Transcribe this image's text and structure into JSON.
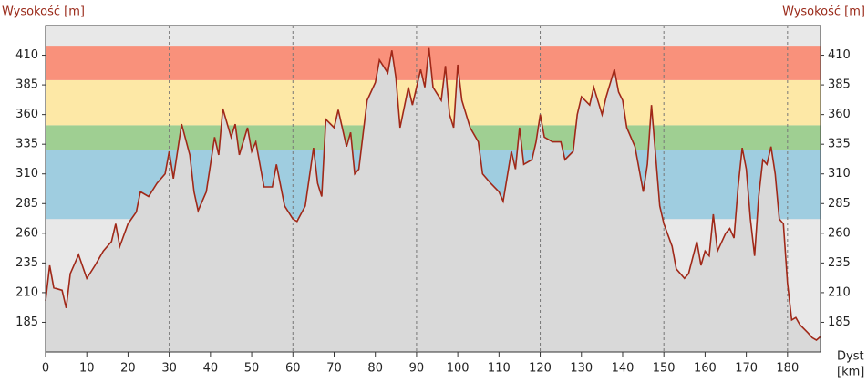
{
  "chart_data": {
    "type": "area",
    "y_label": "Wysokość [m]",
    "x_label_lines": [
      "Dyst",
      "[km]"
    ],
    "x": [
      0,
      1,
      2,
      4,
      5,
      6,
      8,
      10,
      12,
      14,
      16,
      17,
      18,
      20,
      22,
      23,
      25,
      27,
      29,
      30,
      31,
      33,
      35,
      36,
      37,
      39,
      41,
      42,
      43,
      45,
      46,
      47,
      49,
      50,
      51,
      53,
      55,
      56,
      58,
      60,
      61,
      63,
      65,
      66,
      67,
      68,
      70,
      71,
      73,
      74,
      75,
      76,
      78,
      80,
      81,
      83,
      84,
      85,
      86,
      88,
      89,
      91,
      92,
      93,
      94,
      96,
      97,
      98,
      99,
      100,
      101,
      103,
      105,
      106,
      108,
      110,
      111,
      113,
      114,
      115,
      116,
      118,
      119,
      120,
      121,
      123,
      125,
      126,
      128,
      129,
      130,
      132,
      133,
      135,
      136,
      138,
      139,
      140,
      141,
      143,
      145,
      146,
      147,
      148,
      149,
      150,
      152,
      153,
      155,
      156,
      158,
      159,
      160,
      161,
      162,
      163,
      165,
      166,
      167,
      168,
      169,
      170,
      171,
      172,
      173,
      174,
      175,
      176,
      177,
      178,
      179,
      180,
      181,
      182,
      183,
      185,
      186,
      187,
      188
    ],
    "values": [
      203,
      233,
      214,
      212,
      197,
      226,
      242,
      222,
      233,
      245,
      253,
      268,
      249,
      268,
      278,
      295,
      291,
      302,
      310,
      329,
      306,
      352,
      326,
      295,
      279,
      295,
      341,
      326,
      365,
      341,
      352,
      326,
      349,
      329,
      337,
      299,
      299,
      318,
      283,
      272,
      270,
      283,
      332,
      302,
      291,
      356,
      349,
      364,
      333,
      345,
      310,
      314,
      372,
      387,
      406,
      395,
      414,
      391,
      349,
      383,
      368,
      398,
      383,
      416,
      383,
      372,
      401,
      360,
      349,
      402,
      372,
      349,
      337,
      310,
      302,
      295,
      287,
      329,
      314,
      349,
      318,
      322,
      337,
      360,
      341,
      337,
      337,
      322,
      329,
      360,
      375,
      368,
      383,
      360,
      375,
      398,
      379,
      372,
      349,
      333,
      295,
      318,
      368,
      326,
      283,
      268,
      249,
      230,
      222,
      226,
      253,
      233,
      245,
      241,
      276,
      245,
      260,
      264,
      256,
      299,
      332,
      314,
      272,
      241,
      291,
      322,
      318,
      333,
      310,
      272,
      268,
      218,
      187,
      189,
      183,
      176,
      172,
      170,
      173
    ],
    "color": "#a02818",
    "fill": "#d9d9d9",
    "background": "#e8e8e8",
    "bands": [
      {
        "from": 272,
        "to": 330,
        "color": "#9fcde0"
      },
      {
        "from": 330,
        "to": 351,
        "color": "#9fcf92"
      },
      {
        "from": 351,
        "to": 389,
        "color": "#fde8a6"
      },
      {
        "from": 389,
        "to": 418,
        "color": "#f9917b"
      }
    ],
    "xlim": [
      0,
      188
    ],
    "ylim": [
      160,
      435
    ],
    "xticks": [
      0,
      10,
      20,
      30,
      40,
      50,
      60,
      70,
      80,
      90,
      100,
      110,
      120,
      130,
      140,
      150,
      160,
      170,
      180
    ],
    "yticks": [
      185,
      210,
      235,
      260,
      285,
      310,
      335,
      360,
      385,
      410
    ],
    "xgrid": [
      30,
      60,
      90,
      120,
      150,
      180
    ]
  }
}
